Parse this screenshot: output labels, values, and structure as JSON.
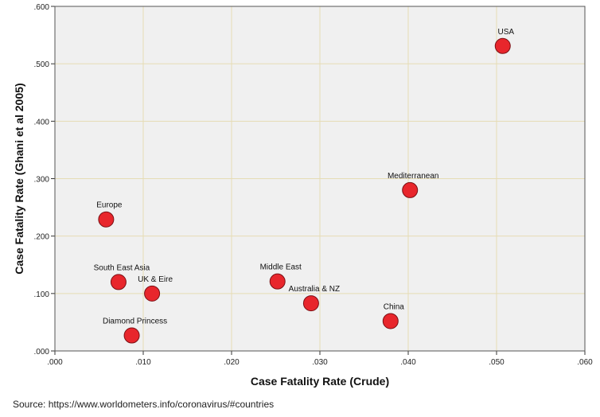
{
  "chart_data": {
    "type": "scatter",
    "title": "",
    "xlabel": "Case Fatality Rate (Crude)",
    "ylabel": "Case Fatality Rate (Ghani et al 2005)",
    "xlim": [
      0,
      0.06
    ],
    "ylim": [
      0,
      0.6
    ],
    "x_ticks": [
      ".000",
      ".010",
      ".020",
      ".030",
      ".040",
      ".050",
      ".060"
    ],
    "y_ticks": [
      ".000",
      ".100",
      ".200",
      ".300",
      ".400",
      ".500",
      ".600"
    ],
    "grid": true,
    "marker_color": "#e8262c",
    "plot_background": "#f0f0f0",
    "grid_color": "#e6dcb4",
    "points": [
      {
        "label": "USA",
        "x": 0.0507,
        "y": 0.531
      },
      {
        "label": "Mediterranean",
        "x": 0.0402,
        "y": 0.28
      },
      {
        "label": "Europe",
        "x": 0.0058,
        "y": 0.229
      },
      {
        "label": "South East Asia",
        "x": 0.0072,
        "y": 0.12
      },
      {
        "label": "UK & Eire",
        "x": 0.011,
        "y": 0.1
      },
      {
        "label": "Middle East",
        "x": 0.0252,
        "y": 0.121
      },
      {
        "label": "Australia & NZ",
        "x": 0.029,
        "y": 0.083
      },
      {
        "label": "China",
        "x": 0.038,
        "y": 0.052
      },
      {
        "label": "Diamond Princess",
        "x": 0.0087,
        "y": 0.027
      }
    ]
  },
  "source": "Source: https://www.worldometers.info/coronavirus/#countries"
}
